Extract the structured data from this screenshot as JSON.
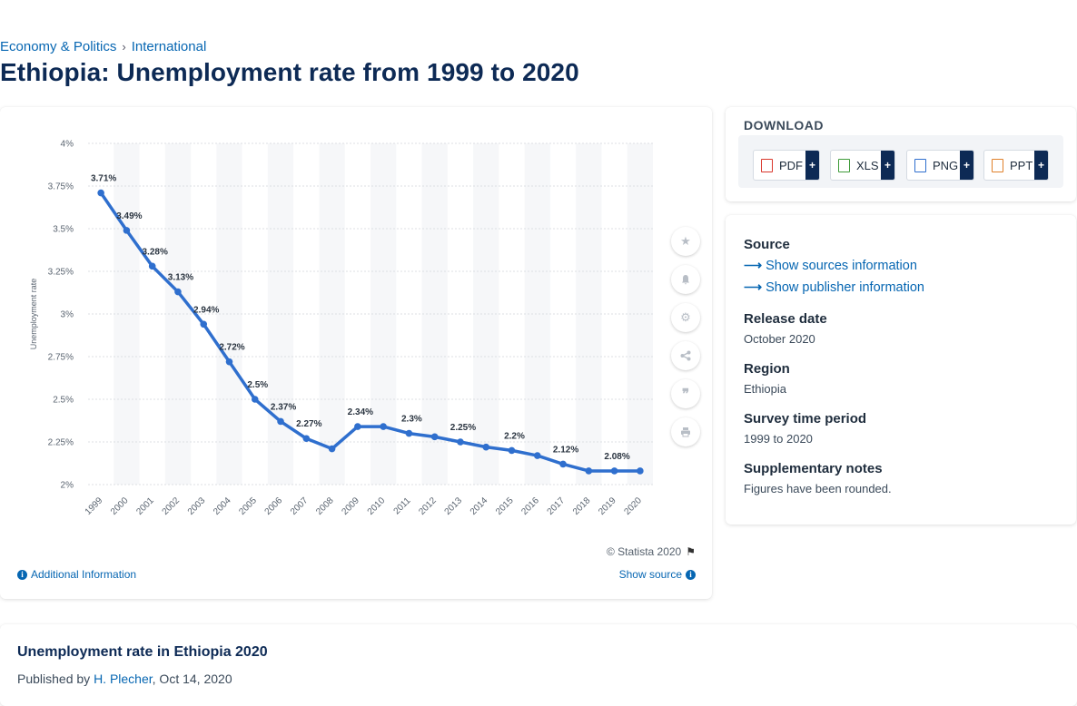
{
  "breadcrumbs": [
    "Economy & Politics",
    "International"
  ],
  "breadcrumb_separator": "›",
  "page_title": "Ethiopia: Unemployment rate from 1999 to 2020",
  "chart_data": {
    "type": "line",
    "title": "",
    "xlabel": "",
    "ylabel": "Unemployment rate",
    "categories": [
      "1999",
      "2000",
      "2001",
      "2002",
      "2003",
      "2004",
      "2005",
      "2006",
      "2007",
      "2008",
      "2009",
      "2010",
      "2011",
      "2012",
      "2013",
      "2014",
      "2015",
      "2016",
      "2017",
      "2018",
      "2019",
      "2020"
    ],
    "series": [
      {
        "values": [
          3.71,
          3.49,
          3.28,
          3.13,
          2.94,
          2.72,
          2.5,
          2.37,
          2.27,
          2.21,
          2.34,
          2.34,
          2.3,
          2.28,
          2.25,
          2.22,
          2.2,
          2.17,
          2.12,
          2.08,
          2.08,
          2.08
        ]
      }
    ],
    "data_labels": [
      {
        "x": "1999",
        "text": "3.71%"
      },
      {
        "x": "2000",
        "text": "3.49%"
      },
      {
        "x": "2001",
        "text": "3.28%"
      },
      {
        "x": "2002",
        "text": "3.13%"
      },
      {
        "x": "2003",
        "text": "2.94%"
      },
      {
        "x": "2004",
        "text": "2.72%"
      },
      {
        "x": "2005",
        "text": "2.5%"
      },
      {
        "x": "2006",
        "text": "2.37%"
      },
      {
        "x": "2007",
        "text": "2.27%"
      },
      {
        "x": "2009",
        "text": "2.34%"
      },
      {
        "x": "2011",
        "text": "2.3%"
      },
      {
        "x": "2013",
        "text": "2.25%"
      },
      {
        "x": "2015",
        "text": "2.2%"
      },
      {
        "x": "2017",
        "text": "2.12%"
      },
      {
        "x": "2019",
        "text": "2.08%"
      }
    ],
    "y_ticks": [
      {
        "value": 2,
        "label": "2%"
      },
      {
        "value": 2.25,
        "label": "2.25%"
      },
      {
        "value": 2.5,
        "label": "2.5%"
      },
      {
        "value": 2.75,
        "label": "2.75%"
      },
      {
        "value": 3,
        "label": "3%"
      },
      {
        "value": 3.25,
        "label": "3.25%"
      },
      {
        "value": 3.5,
        "label": "3.5%"
      },
      {
        "value": 3.75,
        "label": "3.75%"
      },
      {
        "value": 4,
        "label": "4%"
      }
    ],
    "ylim": [
      2,
      4
    ],
    "grid": true,
    "line_color": "#2f6fce"
  },
  "chart_footer": {
    "copyright": "© Statista 2020",
    "additional_info": "Additional Information",
    "show_source": "Show source"
  },
  "side_tools": [
    "star-icon",
    "bell-icon",
    "gear-icon",
    "share-icon",
    "quote-icon",
    "print-icon"
  ],
  "download": {
    "title": "DOWNLOAD",
    "buttons": [
      {
        "label": "PDF",
        "plus": "+",
        "color": "#d9362b"
      },
      {
        "label": "XLS",
        "plus": "+",
        "color": "#3f9b3a"
      },
      {
        "label": "PNG",
        "plus": "+",
        "color": "#2f6fce"
      },
      {
        "label": "PPT",
        "plus": "+",
        "color": "#e0802a"
      }
    ]
  },
  "meta": {
    "source_label": "Source",
    "show_sources": "Show sources information",
    "show_publisher": "Show publisher information",
    "release_label": "Release date",
    "release_value": "October 2020",
    "region_label": "Region",
    "region_value": "Ethiopia",
    "survey_label": "Survey time period",
    "survey_value": "1999 to 2020",
    "notes_label": "Supplementary notes",
    "notes_value": "Figures have been rounded."
  },
  "bottom": {
    "title": "Unemployment rate in Ethiopia 2020",
    "published_by": "Published by",
    "author": "H. Plecher",
    "date": ", Oct 14, 2020"
  }
}
